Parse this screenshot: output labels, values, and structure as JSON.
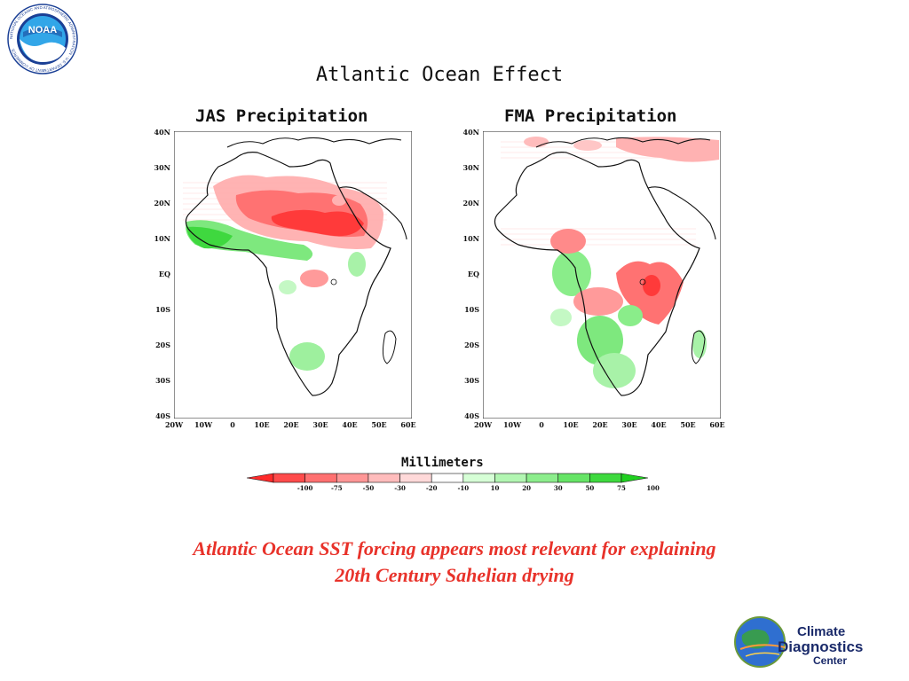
{
  "logo": {
    "noaa_text": "NOAA",
    "ring_text": "NATIONAL OCEANIC AND ATMOSPHERIC ADMINISTRATION · U.S. DEPARTMENT OF COMMERCE",
    "icon": "noaa-seal-icon"
  },
  "figure": {
    "title": "Atlantic Ocean Effect",
    "panels": [
      {
        "title": "JAS Precipitation"
      },
      {
        "title": "FMA Precipitation"
      }
    ],
    "lat_ticks": [
      "40N",
      "30N",
      "20N",
      "10N",
      "EQ",
      "10S",
      "20S",
      "30S",
      "40S"
    ],
    "lon_ticks": [
      "20W",
      "10W",
      "0",
      "10E",
      "20E",
      "30E",
      "40E",
      "50E",
      "60E"
    ],
    "colorbar": {
      "title": "Millimeters",
      "labels": [
        "-100",
        "-75",
        "-50",
        "-30",
        "-20",
        "-10",
        "10",
        "20",
        "30",
        "50",
        "75",
        "100"
      ],
      "colors": [
        "#ff2a2a",
        "#ff4b4b",
        "#ff7070",
        "#ff9696",
        "#ffbcbc",
        "#ffd9d9",
        "#ffffff",
        "#d6ffd6",
        "#b2f6b2",
        "#8ced8c",
        "#66e466",
        "#3ed93e",
        "#20d020"
      ]
    }
  },
  "caption": {
    "line1": "Atlantic Ocean SST forcing appears most relevant for explaining",
    "line2": "20th Century Sahelian drying"
  },
  "cdc_logo": {
    "line1": "Climate",
    "line2": "Diagnostics",
    "line3": "Center",
    "icon": "globe-icon"
  },
  "colors": {
    "caption": "#e8322a",
    "drying": "#ff3c3c",
    "wetting": "#30d830"
  }
}
